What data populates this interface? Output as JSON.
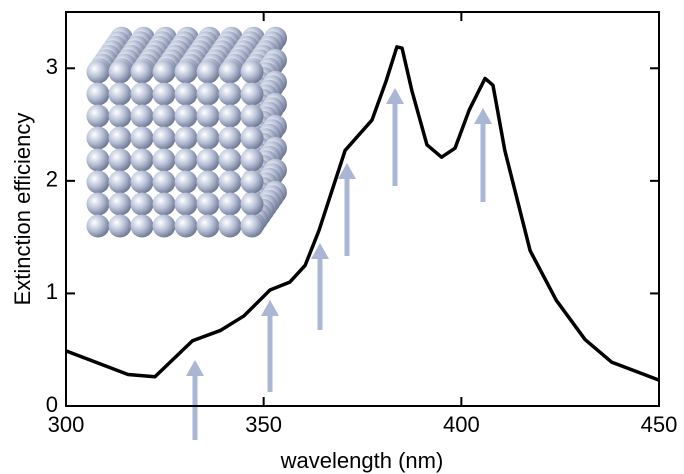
{
  "chart_data": {
    "type": "line",
    "x_label": "wavelength (nm)",
    "y_label": "Extinction efficiency",
    "x": [
      300,
      315.7,
      322.5,
      332,
      339,
      345,
      351.6,
      356.6,
      360.5,
      364,
      370.6,
      377.4,
      381,
      383.7,
      385,
      387.5,
      391.3,
      395,
      398.4,
      402,
      406,
      408,
      411,
      417.4,
      424,
      431.3,
      438,
      450
    ],
    "series": [
      {
        "color": "#000000",
        "values": [
          0.49,
          0.28,
          0.26,
          0.58,
          0.67,
          0.8,
          1.03,
          1.1,
          1.25,
          1.56,
          2.27,
          2.54,
          2.89,
          3.19,
          3.18,
          2.8,
          2.32,
          2.21,
          2.29,
          2.63,
          2.91,
          2.85,
          2.27,
          1.38,
          0.94,
          0.59,
          0.39,
          0.23
        ]
      }
    ],
    "xlim": [
      300,
      450
    ],
    "xticks": [
      300,
      350,
      400,
      450
    ],
    "ylim": [
      0,
      3.5
    ],
    "yticks": [
      0,
      1,
      2,
      3
    ]
  }
}
